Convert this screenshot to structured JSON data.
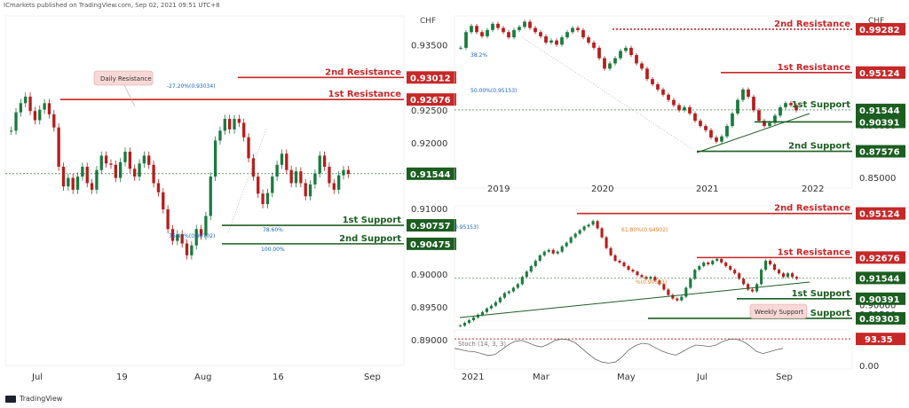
{
  "header": {
    "text": "ICmarkets published on TradingView.com, Sep 02, 2021 09:51 UTC+8"
  },
  "footer": {
    "text": "TradingView"
  },
  "colors": {
    "resistance": "#c62828",
    "support": "#1b5e20",
    "price": "#1b5e20",
    "up": "#26a69a",
    "down": "#ef5350",
    "candle_up": "#1b7a3e",
    "candle_down": "#b71c1c"
  },
  "chart_data": [
    {
      "id": "left",
      "type": "candlestick",
      "currency": "CHF",
      "y_ticks": [
        0.935,
        0.93,
        0.925,
        0.92,
        0.915,
        0.91,
        0.905,
        0.9,
        0.895,
        0.89
      ],
      "y_tick_labels": [
        "0.93500",
        "0.93000",
        "0.92500",
        "0.92000",
        "0.91500",
        "0.91000",
        "0.90500",
        "0.90000",
        "0.89500",
        "0.89000"
      ],
      "ylim": [
        0.8862,
        0.9395
      ],
      "x_ticks": [
        "Jul",
        "19",
        "Aug",
        "16",
        "Sep"
      ],
      "levels": [
        {
          "label": "2nd Resistance",
          "value": 0.93012,
          "price_label": "0.93012",
          "kind": "resistance"
        },
        {
          "label": "1st Resistance",
          "value": 0.92676,
          "price_label": "0.92676",
          "kind": "resistance"
        },
        {
          "label": "",
          "value": 0.91544,
          "price_label": "0.91544",
          "kind": "price"
        },
        {
          "label": "1st Support",
          "value": 0.90757,
          "price_label": "0.90757",
          "kind": "support"
        },
        {
          "label": "2nd Support",
          "value": 0.90475,
          "price_label": "0.90475",
          "kind": "support"
        }
      ],
      "annotations": [
        {
          "text": "Daily Resistance"
        },
        {
          "text": "-27.20%(0.93034)"
        },
        {
          "text": "78.60%"
        },
        {
          "text": "76.40%(0.90702)"
        },
        {
          "text": "100.00%"
        }
      ],
      "series": [
        {
          "values": [
            0.922,
            0.9248,
            0.9262,
            0.9272,
            0.925,
            0.9236,
            0.9252,
            0.9262,
            0.9245,
            0.9225,
            0.9165,
            0.9135,
            0.9148,
            0.913,
            0.915,
            0.9165,
            0.914,
            0.913,
            0.916,
            0.9182,
            0.917,
            0.9168,
            0.9148,
            0.9172,
            0.9188,
            0.9162,
            0.915,
            0.917,
            0.9182,
            0.9168,
            0.914,
            0.9126,
            0.91,
            0.907,
            0.9052,
            0.9062,
            0.9048,
            0.903,
            0.9045,
            0.907,
            0.906,
            0.909,
            0.915,
            0.9205,
            0.922,
            0.9238,
            0.9222,
            0.9238,
            0.9232,
            0.921,
            0.9178,
            0.915,
            0.9124,
            0.9108,
            0.9125,
            0.915,
            0.9168,
            0.9185,
            0.916,
            0.914,
            0.9158,
            0.914,
            0.912,
            0.9138,
            0.9155,
            0.9182,
            0.9165,
            0.914,
            0.913,
            0.9152,
            0.916,
            0.9154
          ]
        }
      ]
    },
    {
      "id": "weekly",
      "type": "candlestick",
      "currency": "CHF",
      "y_ticks": [
        0.9,
        0.85
      ],
      "y_tick_labels": [
        "0.90000",
        "0.85000"
      ],
      "ylim": [
        0.8405,
        1.0055
      ],
      "x_ticks": [
        "2019",
        "2020",
        "2021",
        "2022"
      ],
      "levels": [
        {
          "label": "2nd Resistance",
          "value": 0.99282,
          "price_label": "0.99282",
          "kind": "resistance"
        },
        {
          "label": "1st Resistance",
          "value": 0.95124,
          "price_label": "0.95124",
          "kind": "resistance"
        },
        {
          "label": "1st Support",
          "value": 0.91544,
          "price_label": "0.91544",
          "kind": "price"
        },
        {
          "label": "",
          "value": 0.90391,
          "price_label": "0.90391",
          "kind": "support"
        },
        {
          "label": "2nd Support",
          "value": 0.87576,
          "price_label": "0.87576",
          "kind": "support"
        }
      ],
      "annotations": [
        {
          "text": "50.00%(0.95153)"
        },
        {
          "text": "38.2%"
        }
      ],
      "series": [
        {
          "values": [
            0.975,
            0.99,
            0.996,
            0.99,
            0.986,
            0.992,
            0.998,
            0.994,
            0.99,
            0.985,
            0.992,
            0.995,
            1.0,
            0.994,
            0.99,
            0.986,
            0.98,
            0.982,
            0.978,
            0.985,
            0.99,
            0.994,
            0.992,
            0.985,
            0.98,
            0.975,
            0.965,
            0.955,
            0.96,
            0.965,
            0.972,
            0.975,
            0.968,
            0.96,
            0.955,
            0.945,
            0.94,
            0.935,
            0.93,
            0.925,
            0.92,
            0.915,
            0.918,
            0.912,
            0.905,
            0.9,
            0.896,
            0.889,
            0.885,
            0.89,
            0.9,
            0.912,
            0.925,
            0.935,
            0.928,
            0.915,
            0.905,
            0.9,
            0.903,
            0.91,
            0.918,
            0.922,
            0.92,
            0.915
          ]
        }
      ]
    },
    {
      "id": "daily-2021",
      "type": "candlestick",
      "currency": "CHF",
      "y_ticks": [
        0.9,
        0.895
      ],
      "y_tick_labels": [
        "0.90000",
        "0.89500"
      ],
      "ylim": [
        0.8915,
        0.9555
      ],
      "x_ticks": [
        "2021",
        "Mar",
        "May",
        "Jul",
        "Sep"
      ],
      "levels": [
        {
          "label": "2nd Resistance",
          "value": 0.95124,
          "price_label": "0.95124",
          "kind": "resistance"
        },
        {
          "label": "1st Resistance",
          "value": 0.92676,
          "price_label": "0.92676",
          "kind": "resistance"
        },
        {
          "label": "",
          "value": 0.91544,
          "price_label": "0.91544",
          "kind": "price"
        },
        {
          "label": "1st Support",
          "value": 0.90391,
          "price_label": "0.90391",
          "kind": "support"
        },
        {
          "label": "2nd Support",
          "value": 0.89303,
          "price_label": "0.89303",
          "kind": "support"
        }
      ],
      "annotations": [
        {
          "text": "Weekly Support"
        },
        {
          "text": "0.95153)"
        },
        {
          "text": "61.80%(0.94902)"
        },
        {
          "text": "%(0.90593)"
        }
      ],
      "stoch": {
        "label": "Stoch (14, 3, 3)",
        "level_label": "93.35",
        "zero_label": "0.00",
        "values": [
          60,
          55,
          50,
          48,
          42,
          35,
          38,
          55,
          72,
          85,
          88,
          80,
          70,
          65,
          75,
          88,
          93,
          90,
          80,
          60,
          40,
          22,
          12,
          8,
          12,
          30,
          55,
          70,
          78,
          75,
          62,
          50,
          42,
          36,
          48,
          62,
          72,
          70,
          66,
          72,
          84,
          92,
          93,
          85,
          70,
          50,
          42,
          48,
          55,
          60
        ]
      },
      "series": [
        {
          "values": [
            0.889,
            0.8905,
            0.892,
            0.8935,
            0.895,
            0.8965,
            0.8985,
            0.9,
            0.902,
            0.9045,
            0.907,
            0.908,
            0.91,
            0.912,
            0.916,
            0.919,
            0.922,
            0.925,
            0.928,
            0.93,
            0.931,
            0.929,
            0.93,
            0.933,
            0.935,
            0.938,
            0.94,
            0.942,
            0.944,
            0.945,
            0.947,
            0.943,
            0.938,
            0.932,
            0.928,
            0.925,
            0.924,
            0.922,
            0.92,
            0.919,
            0.917,
            0.916,
            0.915,
            0.916,
            0.914,
            0.912,
            0.909,
            0.906,
            0.904,
            0.903,
            0.905,
            0.91,
            0.915,
            0.92,
            0.922,
            0.924,
            0.923,
            0.925,
            0.926,
            0.924,
            0.922,
            0.92,
            0.918,
            0.915,
            0.912,
            0.909,
            0.908,
            0.912,
            0.92,
            0.925,
            0.923,
            0.92,
            0.918,
            0.916,
            0.918,
            0.916,
            0.915
          ]
        }
      ]
    }
  ]
}
